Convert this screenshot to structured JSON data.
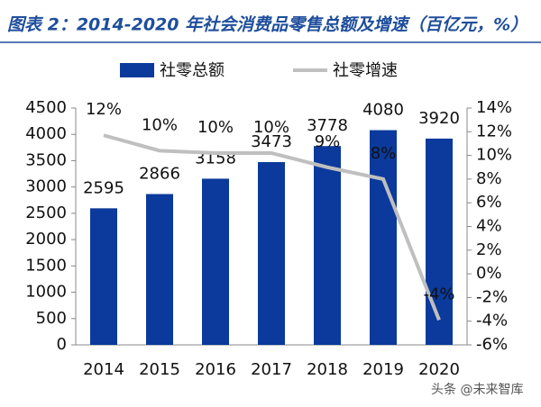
{
  "title": "图表 2：2014-2020 年社会消费品零售总额及增速（百亿元，%）",
  "watermark": "头条 @未来智库",
  "chart_data": {
    "type": "bar-line",
    "categories": [
      "2014",
      "2015",
      "2016",
      "2017",
      "2018",
      "2019",
      "2020"
    ],
    "series": [
      {
        "name": "社零总额",
        "type": "bar",
        "color": "#0b3a9c",
        "values": [
          2595,
          2866,
          3158,
          3473,
          3778,
          4080,
          3920
        ]
      },
      {
        "name": "社零增速",
        "type": "line",
        "axis": "y2",
        "color": "#bfbfbf",
        "values": [
          11.7,
          10.4,
          10.2,
          10.2,
          9.0,
          8.0,
          -3.9
        ],
        "value_labels": [
          "12%",
          "10%",
          "10%",
          "10%",
          "9%",
          "8%",
          "-4%"
        ]
      }
    ],
    "ylim": [
      0,
      4500
    ],
    "yticks": [
      0,
      500,
      1000,
      1500,
      2000,
      2500,
      3000,
      3500,
      4000,
      4500
    ],
    "y2lim": [
      -6,
      14
    ],
    "y2ticks": [
      {
        "value": -6,
        "label": "-6%"
      },
      {
        "value": -4,
        "label": "-4%"
      },
      {
        "value": -2,
        "label": "-2%"
      },
      {
        "value": 0,
        "label": "0%"
      },
      {
        "value": 2,
        "label": "2%"
      },
      {
        "value": 4,
        "label": "4%"
      },
      {
        "value": 6,
        "label": "6%"
      },
      {
        "value": 8,
        "label": "8%"
      },
      {
        "value": 10,
        "label": "10%"
      },
      {
        "value": 12,
        "label": "12%"
      },
      {
        "value": 14,
        "label": "14%"
      }
    ],
    "legend": "top"
  }
}
